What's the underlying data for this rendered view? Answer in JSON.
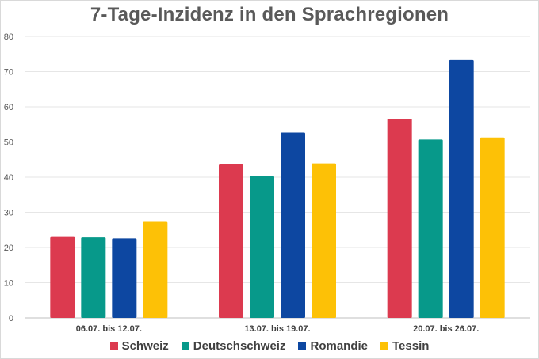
{
  "chart_data": {
    "type": "bar",
    "title": "7-Tage-Inzidenz in den Sprachregionen",
    "xlabel": "",
    "ylabel": "",
    "ylim": [
      0,
      80
    ],
    "yticks": [
      0,
      10,
      20,
      30,
      40,
      50,
      60,
      70,
      80
    ],
    "grid": true,
    "legend_position": "bottom",
    "categories": [
      "06.07. bis 12.07.",
      "13.07. bis 19.07.",
      "20.07. bis 26.07."
    ],
    "series": [
      {
        "name": "Schweiz",
        "color": "#dc3a4f",
        "values": [
          23.0,
          43.6,
          56.6
        ]
      },
      {
        "name": "Deutschschweiz",
        "color": "#07998a",
        "values": [
          22.9,
          40.3,
          50.7
        ]
      },
      {
        "name": "Romandie",
        "color": "#0d47a1",
        "values": [
          22.6,
          52.7,
          73.3
        ]
      },
      {
        "name": "Tessin",
        "color": "#fdc106",
        "values": [
          27.3,
          43.9,
          51.3
        ]
      }
    ]
  }
}
